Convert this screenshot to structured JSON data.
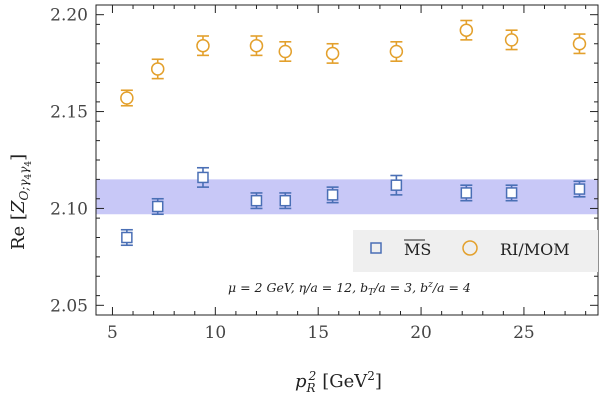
{
  "chart_data": {
    "type": "scatter",
    "xlabel": "p_R^2 [GeV^2]",
    "ylabel": "Re [Z_O;γ4γ4]",
    "xlim": [
      4.2,
      28.6
    ],
    "ylim": [
      2.045,
      2.205
    ],
    "x_ticks": [
      5,
      10,
      15,
      20,
      25
    ],
    "y_ticks": [
      2.05,
      2.1,
      2.15,
      2.2
    ],
    "y_tick_labels": [
      "2.05",
      "2.10",
      "2.15",
      "2.20"
    ],
    "grid": false,
    "band": {
      "y_low": 2.097,
      "y_high": 2.115,
      "color": "#c8c8f7"
    },
    "series": [
      {
        "name": "MS-bar",
        "marker": "square",
        "color": "#4a6fb5",
        "points": [
          {
            "x": 5.7,
            "y": 2.085,
            "err": 0.004
          },
          {
            "x": 7.2,
            "y": 2.101,
            "err": 0.004
          },
          {
            "x": 9.4,
            "y": 2.116,
            "err": 0.005
          },
          {
            "x": 12.0,
            "y": 2.104,
            "err": 0.004
          },
          {
            "x": 13.4,
            "y": 2.104,
            "err": 0.004
          },
          {
            "x": 15.7,
            "y": 2.107,
            "err": 0.004
          },
          {
            "x": 18.8,
            "y": 2.112,
            "err": 0.005
          },
          {
            "x": 22.2,
            "y": 2.108,
            "err": 0.004
          },
          {
            "x": 24.4,
            "y": 2.108,
            "err": 0.004
          },
          {
            "x": 27.7,
            "y": 2.11,
            "err": 0.004
          }
        ]
      },
      {
        "name": "RI/MOM",
        "marker": "circle",
        "color": "#e3a02c",
        "points": [
          {
            "x": 5.7,
            "y": 2.157,
            "err": 0.004
          },
          {
            "x": 7.2,
            "y": 2.172,
            "err": 0.005
          },
          {
            "x": 9.4,
            "y": 2.184,
            "err": 0.005
          },
          {
            "x": 12.0,
            "y": 2.184,
            "err": 0.005
          },
          {
            "x": 13.4,
            "y": 2.181,
            "err": 0.005
          },
          {
            "x": 15.7,
            "y": 2.18,
            "err": 0.005
          },
          {
            "x": 18.8,
            "y": 2.181,
            "err": 0.005
          },
          {
            "x": 22.2,
            "y": 2.192,
            "err": 0.005
          },
          {
            "x": 24.4,
            "y": 2.187,
            "err": 0.005
          },
          {
            "x": 27.7,
            "y": 2.185,
            "err": 0.005
          }
        ]
      }
    ],
    "legend": {
      "placement": "lower-right",
      "entries": [
        {
          "label": "MS",
          "overline": true,
          "marker": "square",
          "color": "#4a6fb5"
        },
        {
          "label": "RI/MOM",
          "overline": false,
          "marker": "circle",
          "color": "#e3a02c"
        }
      ]
    },
    "annotation": "μ = 2 GeV, η/a = 12, b_T/a = 3, b^z/a = 4"
  }
}
